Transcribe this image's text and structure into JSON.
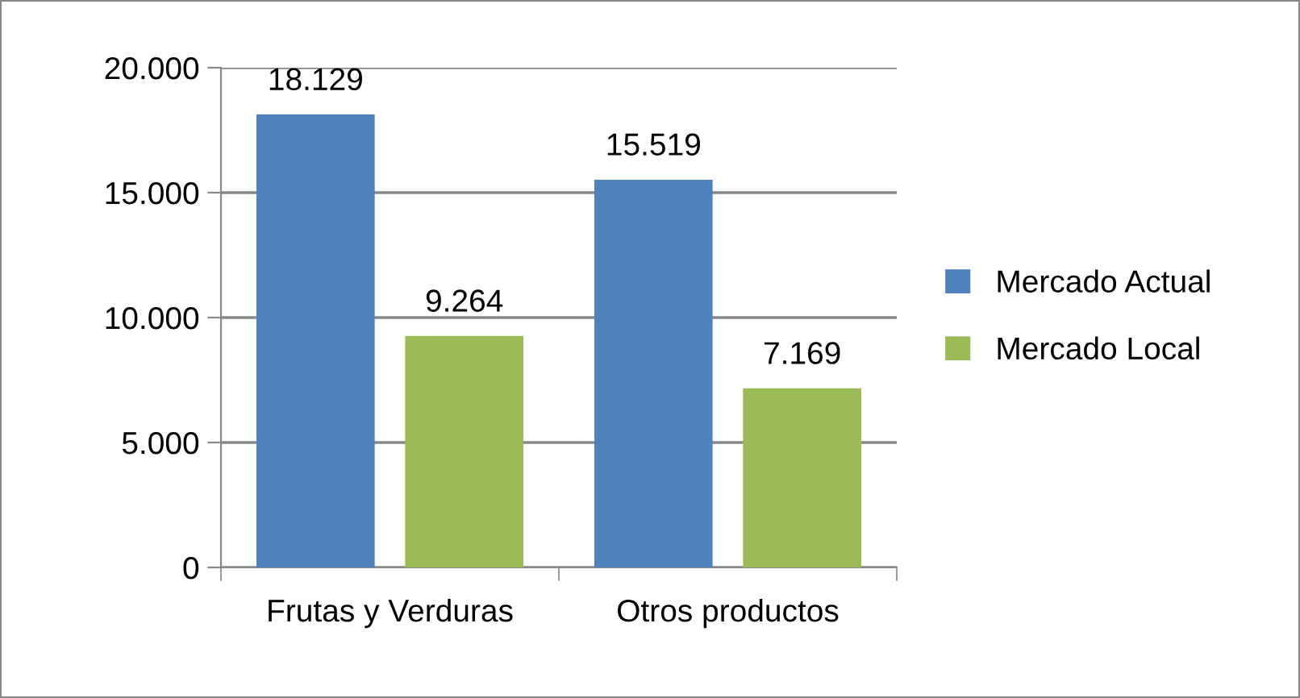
{
  "chart_data": {
    "type": "bar",
    "categories": [
      "Frutas y Verduras",
      "Otros productos"
    ],
    "series": [
      {
        "name": "Mercado Actual",
        "color": "#4f81bd",
        "values": [
          18129,
          15519
        ],
        "value_labels": [
          "18.129",
          "15.519"
        ]
      },
      {
        "name": "Mercado Local",
        "color": "#9bbb59",
        "values": [
          9264,
          7169
        ],
        "value_labels": [
          "9.264",
          "7.169"
        ]
      }
    ],
    "ylim": [
      0,
      20000
    ],
    "yticks": [
      {
        "value": 0,
        "label": "0"
      },
      {
        "value": 5000,
        "label": "5.000"
      },
      {
        "value": 10000,
        "label": "10.000"
      },
      {
        "value": 15000,
        "label": "15.000"
      },
      {
        "value": 20000,
        "label": "20.000"
      }
    ],
    "grid": "y",
    "legend": "right"
  }
}
